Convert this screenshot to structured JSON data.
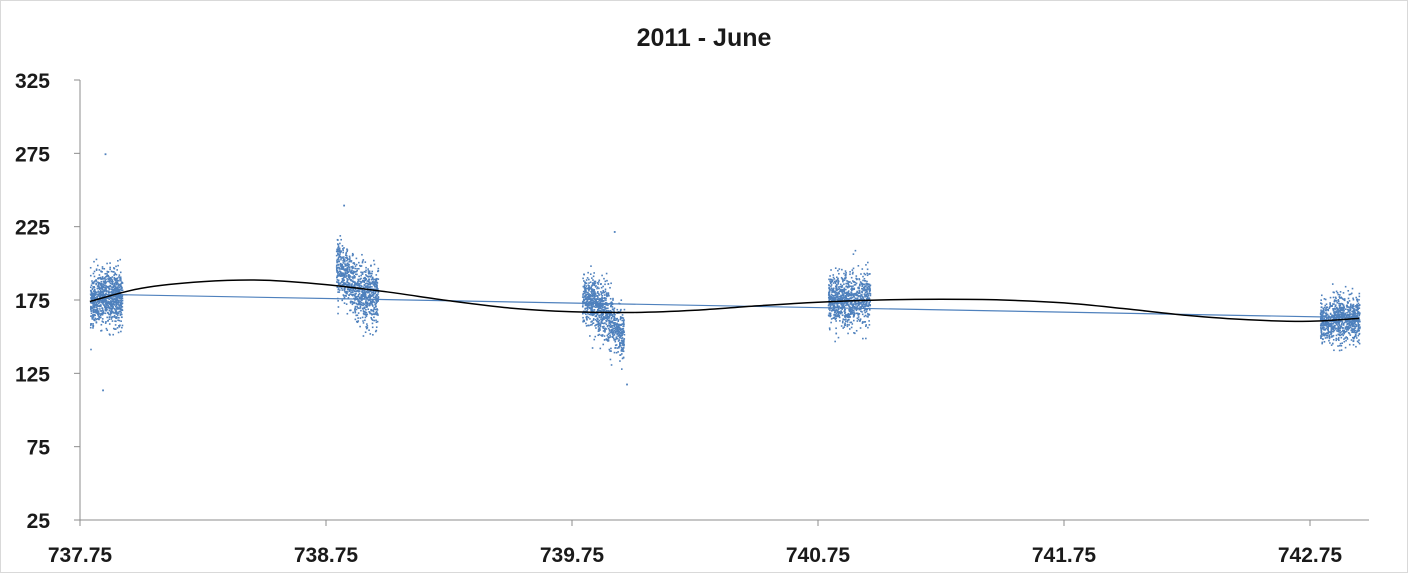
{
  "chart_data": {
    "type": "scatter",
    "title": "2011 - June",
    "xlabel": "",
    "ylabel": "",
    "xlim": [
      737.75,
      742.95
    ],
    "ylim": [
      25,
      325
    ],
    "x_ticks": [
      "737.75",
      "738.75",
      "739.75",
      "740.75",
      "741.75",
      "742.75"
    ],
    "y_ticks": [
      "25",
      "75",
      "125",
      "175",
      "225",
      "275",
      "325"
    ],
    "grid": false,
    "legend": "none",
    "series": [
      {
        "kind": "scatter",
        "color": "#4f81bd",
        "clusters": [
          {
            "x_start": 737.79,
            "x_end": 737.92,
            "center": 178,
            "spread": 12,
            "ends": [
              173,
              177
            ]
          },
          {
            "x_start": 738.79,
            "x_end": 738.96,
            "center": 181,
            "spread": 13,
            "ends": [
              200,
              176
            ]
          },
          {
            "x_start": 739.79,
            "x_end": 739.96,
            "center": 168,
            "spread": 12,
            "ends": [
              178,
              150
            ]
          },
          {
            "x_start": 740.79,
            "x_end": 740.96,
            "center": 174,
            "spread": 12,
            "ends": [
              176,
              178
            ]
          },
          {
            "x_start": 742.79,
            "x_end": 742.95,
            "center": 162,
            "spread": 10,
            "ends": [
              161,
              163
            ]
          }
        ],
        "outliers": [
          {
            "x": 737.85,
            "y": 275
          },
          {
            "x": 737.84,
            "y": 114
          },
          {
            "x": 738.82,
            "y": 240
          },
          {
            "x": 739.97,
            "y": 118
          },
          {
            "x": 739.92,
            "y": 222
          }
        ]
      },
      {
        "kind": "linear-trendline",
        "color": "#4f81bd",
        "x": [
          737.79,
          742.95
        ],
        "y": [
          179,
          163
        ]
      },
      {
        "kind": "polynomial-trendline",
        "color": "#000000",
        "x": [
          737.79,
          738.0,
          738.25,
          738.5,
          738.75,
          739.0,
          739.25,
          739.5,
          739.75,
          740.0,
          740.25,
          740.5,
          740.75,
          741.0,
          741.25,
          741.5,
          741.75,
          742.0,
          742.25,
          742.5,
          742.75,
          742.95
        ],
        "y": [
          174,
          183,
          187.5,
          188.5,
          185.5,
          180.5,
          174.5,
          169.5,
          167,
          166.5,
          168,
          171,
          173.5,
          175,
          175.5,
          175,
          173,
          169,
          164.5,
          161.5,
          160.5,
          162.5
        ]
      }
    ]
  }
}
